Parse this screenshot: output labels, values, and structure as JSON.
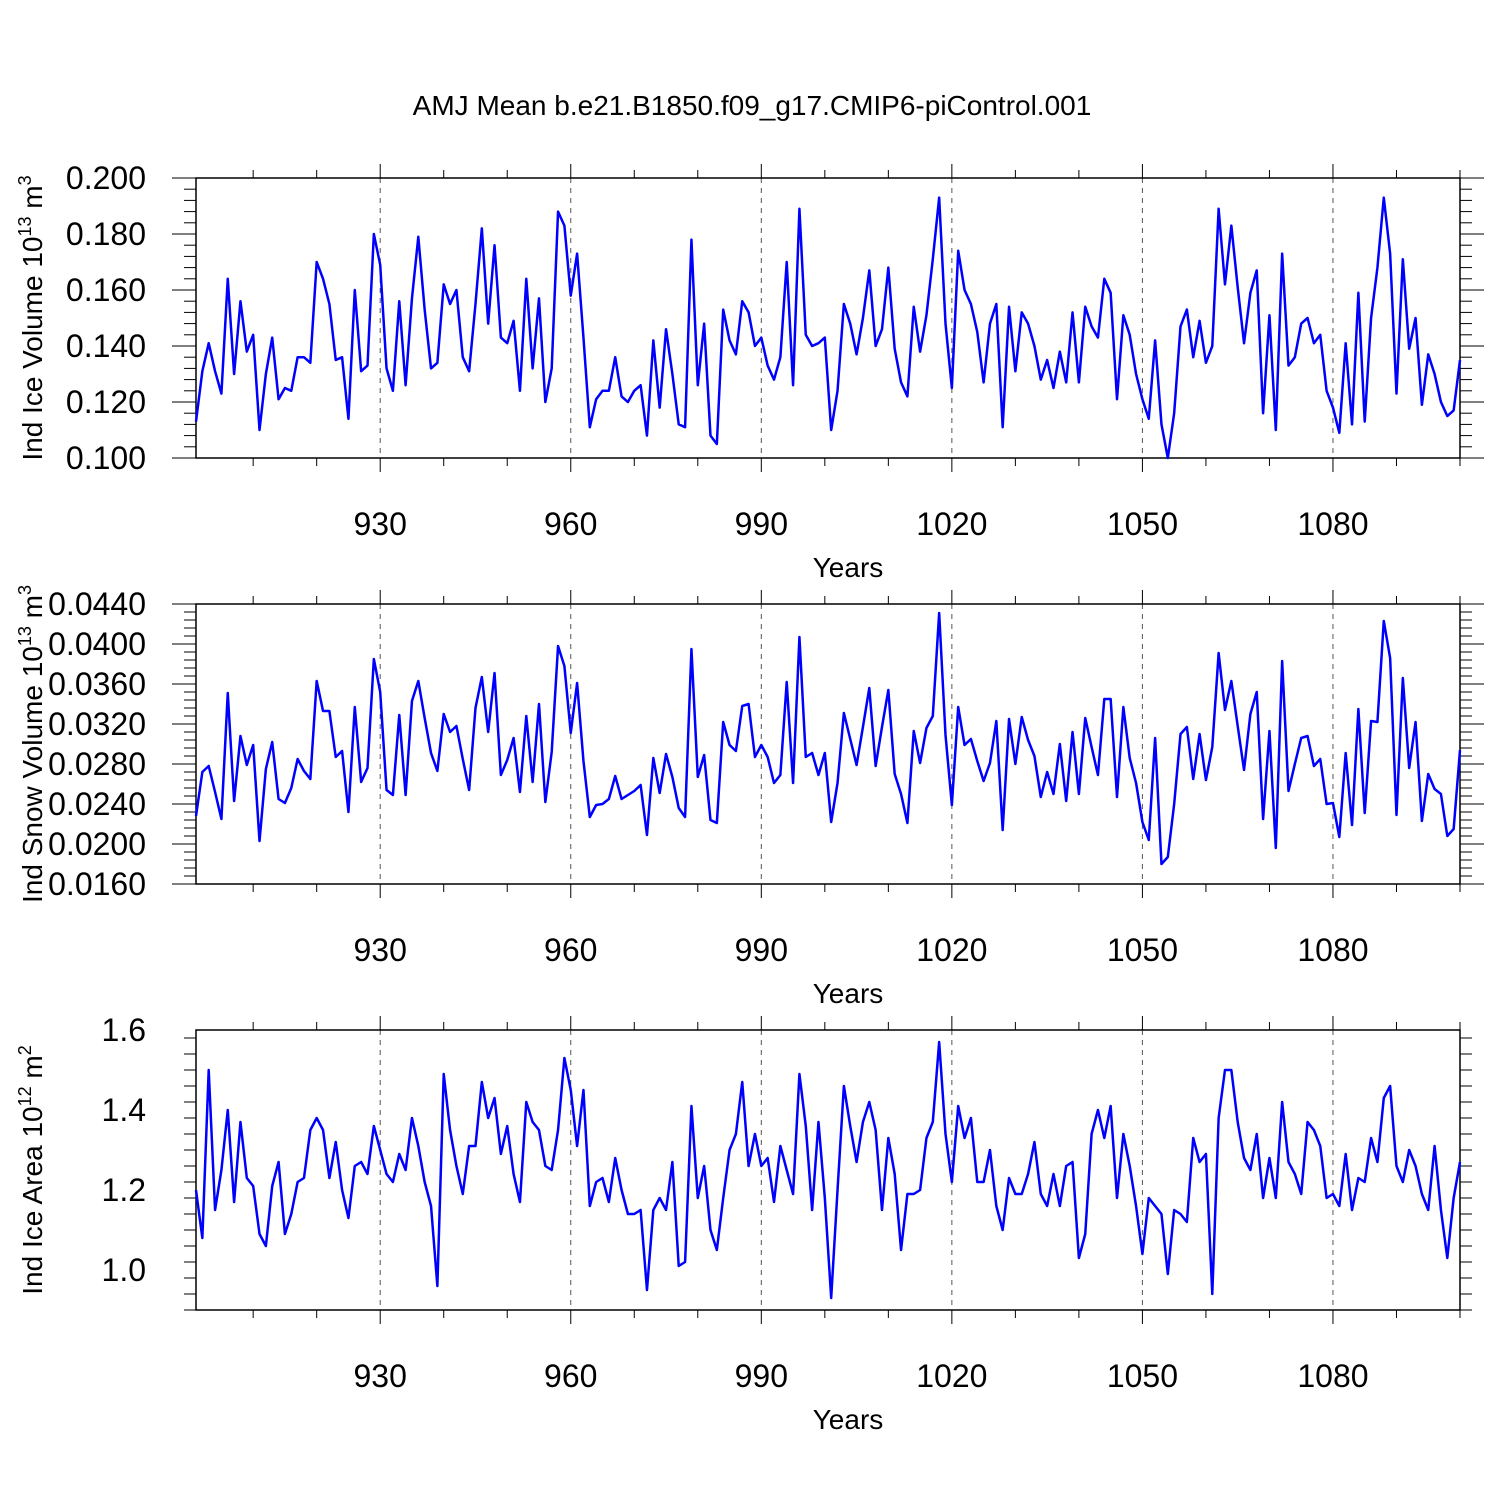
{
  "title": "AMJ Mean b.e21.B1850.f09_g17.CMIP6-piControl.001",
  "colors": {
    "series": "#0000ff",
    "axis": "#000000",
    "grid": "#555555",
    "background": "#ffffff"
  },
  "chart_data": [
    {
      "type": "line",
      "xlabel": "Years",
      "ylabel_main": "Ind Ice Volume 10",
      "ylabel_exp": "13",
      "ylabel_unit": " m",
      "ylabel_unit_exp": "3",
      "xlim": [
        901,
        1100
      ],
      "ylim": [
        0.1,
        0.2
      ],
      "yticks": [
        "0.100",
        "0.120",
        "0.140",
        "0.160",
        "0.180",
        "0.200"
      ],
      "xticks": [
        "930",
        "960",
        "990",
        "1020",
        "1050",
        "1080"
      ],
      "x_start": 901,
      "values": [
        0.113,
        0.131,
        0.141,
        0.131,
        0.123,
        0.164,
        0.13,
        0.156,
        0.138,
        0.144,
        0.11,
        0.13,
        0.143,
        0.121,
        0.125,
        0.124,
        0.136,
        0.136,
        0.134,
        0.17,
        0.164,
        0.155,
        0.135,
        0.136,
        0.114,
        0.16,
        0.131,
        0.133,
        0.18,
        0.169,
        0.132,
        0.124,
        0.156,
        0.126,
        0.157,
        0.179,
        0.153,
        0.132,
        0.134,
        0.162,
        0.155,
        0.16,
        0.136,
        0.131,
        0.155,
        0.182,
        0.148,
        0.176,
        0.143,
        0.141,
        0.149,
        0.124,
        0.164,
        0.132,
        0.157,
        0.12,
        0.132,
        0.188,
        0.183,
        0.158,
        0.173,
        0.143,
        0.111,
        0.121,
        0.124,
        0.124,
        0.136,
        0.122,
        0.12,
        0.124,
        0.126,
        0.108,
        0.142,
        0.118,
        0.146,
        0.13,
        0.112,
        0.111,
        0.178,
        0.126,
        0.148,
        0.108,
        0.105,
        0.153,
        0.142,
        0.137,
        0.156,
        0.152,
        0.14,
        0.143,
        0.133,
        0.128,
        0.136,
        0.17,
        0.126,
        0.189,
        0.144,
        0.14,
        0.141,
        0.143,
        0.11,
        0.124,
        0.155,
        0.148,
        0.137,
        0.15,
        0.167,
        0.14,
        0.146,
        0.168,
        0.139,
        0.127,
        0.122,
        0.154,
        0.138,
        0.151,
        0.171,
        0.193,
        0.148,
        0.125,
        0.174,
        0.16,
        0.155,
        0.145,
        0.127,
        0.148,
        0.155,
        0.111,
        0.154,
        0.131,
        0.152,
        0.148,
        0.14,
        0.128,
        0.135,
        0.125,
        0.138,
        0.127,
        0.152,
        0.127,
        0.154,
        0.147,
        0.143,
        0.164,
        0.159,
        0.121,
        0.151,
        0.144,
        0.13,
        0.121,
        0.114,
        0.142,
        0.112,
        0.1,
        0.116,
        0.147,
        0.153,
        0.136,
        0.149,
        0.134,
        0.14,
        0.189,
        0.162,
        0.183,
        0.161,
        0.141,
        0.159,
        0.167,
        0.116,
        0.151,
        0.11,
        0.173,
        0.133,
        0.136,
        0.148,
        0.15,
        0.141,
        0.144,
        0.124,
        0.118,
        0.109,
        0.141,
        0.112,
        0.159,
        0.113,
        0.15,
        0.168,
        0.193,
        0.173,
        0.123,
        0.171,
        0.139,
        0.15,
        0.119,
        0.137,
        0.13,
        0.12,
        0.115,
        0.117,
        0.135
      ]
    },
    {
      "type": "line",
      "xlabel": "Years",
      "ylabel_main": "Ind Snow Volume 10",
      "ylabel_exp": "13",
      "ylabel_unit": " m",
      "ylabel_unit_exp": "3",
      "xlim": [
        901,
        1100
      ],
      "ylim": [
        0.016,
        0.044
      ],
      "yticks": [
        "0.0160",
        "0.0200",
        "0.0240",
        "0.0280",
        "0.0320",
        "0.0360",
        "0.0400",
        "0.0440"
      ],
      "xticks": [
        "930",
        "960",
        "990",
        "1020",
        "1050",
        "1080"
      ],
      "x_start": 901,
      "values": [
        0.0228,
        0.0272,
        0.0278,
        0.0252,
        0.0225,
        0.0351,
        0.0243,
        0.0308,
        0.0279,
        0.0299,
        0.0203,
        0.0275,
        0.0302,
        0.0245,
        0.0241,
        0.0256,
        0.0285,
        0.0273,
        0.0265,
        0.0363,
        0.0333,
        0.0333,
        0.0287,
        0.0293,
        0.0232,
        0.0337,
        0.0262,
        0.0276,
        0.0385,
        0.0352,
        0.0254,
        0.0249,
        0.0329,
        0.0249,
        0.0343,
        0.0363,
        0.0326,
        0.0291,
        0.0273,
        0.033,
        0.0312,
        0.0318,
        0.0285,
        0.0254,
        0.0336,
        0.0367,
        0.0312,
        0.0371,
        0.0269,
        0.0284,
        0.0306,
        0.0252,
        0.0328,
        0.0262,
        0.034,
        0.0242,
        0.0292,
        0.0398,
        0.0378,
        0.0311,
        0.0361,
        0.0283,
        0.0227,
        0.0239,
        0.024,
        0.0245,
        0.0268,
        0.0245,
        0.0249,
        0.0253,
        0.0259,
        0.0209,
        0.0286,
        0.0251,
        0.029,
        0.0267,
        0.0236,
        0.0227,
        0.0395,
        0.0267,
        0.0289,
        0.0224,
        0.0221,
        0.0322,
        0.0299,
        0.0293,
        0.0338,
        0.034,
        0.0287,
        0.0299,
        0.0287,
        0.0261,
        0.0269,
        0.0362,
        0.0261,
        0.0407,
        0.0287,
        0.0291,
        0.0269,
        0.0291,
        0.0222,
        0.0261,
        0.0331,
        0.0305,
        0.0279,
        0.0317,
        0.0356,
        0.0278,
        0.0317,
        0.0354,
        0.027,
        0.025,
        0.0221,
        0.0313,
        0.0281,
        0.0316,
        0.0328,
        0.0431,
        0.0309,
        0.0239,
        0.0337,
        0.0299,
        0.0305,
        0.0283,
        0.0263,
        0.0281,
        0.0323,
        0.0214,
        0.0325,
        0.028,
        0.0327,
        0.0304,
        0.0288,
        0.0247,
        0.0272,
        0.025,
        0.03,
        0.0243,
        0.0312,
        0.025,
        0.0326,
        0.0297,
        0.0269,
        0.0345,
        0.0345,
        0.0247,
        0.0337,
        0.0286,
        0.0261,
        0.0222,
        0.0204,
        0.0306,
        0.018,
        0.0187,
        0.024,
        0.031,
        0.0317,
        0.0265,
        0.031,
        0.0264,
        0.0297,
        0.0391,
        0.0334,
        0.0363,
        0.0318,
        0.0274,
        0.033,
        0.0352,
        0.0225,
        0.0313,
        0.0196,
        0.0383,
        0.0253,
        0.028,
        0.0306,
        0.0308,
        0.0278,
        0.0285,
        0.024,
        0.0241,
        0.0207,
        0.0291,
        0.0219,
        0.0335,
        0.0231,
        0.0323,
        0.0322,
        0.0423,
        0.0386,
        0.0229,
        0.0366,
        0.0276,
        0.0322,
        0.0223,
        0.027,
        0.0255,
        0.025,
        0.0208,
        0.0215,
        0.0294
      ]
    },
    {
      "type": "line",
      "xlabel": "Years",
      "ylabel_main": "Ind Ice Area 10",
      "ylabel_exp": "12",
      "ylabel_unit": " m",
      "ylabel_unit_exp": "2",
      "xlim": [
        901,
        1100
      ],
      "ylim": [
        0.9,
        1.6
      ],
      "yticks": [
        "1.0",
        "1.2",
        "1.4",
        "1.6"
      ],
      "ytick_values": [
        1.0,
        1.2,
        1.4,
        1.6
      ],
      "xticks": [
        "930",
        "960",
        "990",
        "1020",
        "1050",
        "1080"
      ],
      "x_start": 901,
      "values": [
        1.2,
        1.08,
        1.5,
        1.15,
        1.25,
        1.4,
        1.17,
        1.37,
        1.23,
        1.21,
        1.09,
        1.06,
        1.21,
        1.27,
        1.09,
        1.14,
        1.22,
        1.23,
        1.35,
        1.38,
        1.35,
        1.23,
        1.32,
        1.2,
        1.13,
        1.26,
        1.27,
        1.24,
        1.36,
        1.3,
        1.24,
        1.22,
        1.29,
        1.25,
        1.38,
        1.31,
        1.22,
        1.16,
        0.96,
        1.49,
        1.35,
        1.26,
        1.19,
        1.31,
        1.31,
        1.47,
        1.38,
        1.43,
        1.29,
        1.36,
        1.24,
        1.17,
        1.42,
        1.37,
        1.35,
        1.26,
        1.25,
        1.35,
        1.53,
        1.45,
        1.31,
        1.45,
        1.16,
        1.22,
        1.23,
        1.17,
        1.28,
        1.2,
        1.14,
        1.14,
        1.15,
        0.95,
        1.15,
        1.18,
        1.15,
        1.27,
        1.01,
        1.02,
        1.41,
        1.18,
        1.26,
        1.1,
        1.05,
        1.18,
        1.3,
        1.34,
        1.47,
        1.26,
        1.34,
        1.26,
        1.28,
        1.17,
        1.31,
        1.25,
        1.19,
        1.49,
        1.36,
        1.15,
        1.37,
        1.18,
        0.93,
        1.2,
        1.46,
        1.36,
        1.27,
        1.37,
        1.42,
        1.35,
        1.15,
        1.33,
        1.24,
        1.05,
        1.19,
        1.19,
        1.2,
        1.33,
        1.37,
        1.57,
        1.34,
        1.22,
        1.41,
        1.33,
        1.38,
        1.22,
        1.22,
        1.3,
        1.16,
        1.1,
        1.23,
        1.19,
        1.19,
        1.24,
        1.32,
        1.19,
        1.16,
        1.24,
        1.16,
        1.26,
        1.27,
        1.03,
        1.09,
        1.34,
        1.4,
        1.33,
        1.41,
        1.18,
        1.34,
        1.26,
        1.16,
        1.04,
        1.18,
        1.16,
        1.14,
        0.99,
        1.15,
        1.14,
        1.12,
        1.33,
        1.27,
        1.29,
        0.94,
        1.38,
        1.5,
        1.5,
        1.37,
        1.28,
        1.25,
        1.34,
        1.18,
        1.28,
        1.18,
        1.42,
        1.27,
        1.24,
        1.19,
        1.37,
        1.35,
        1.31,
        1.18,
        1.19,
        1.16,
        1.29,
        1.15,
        1.23,
        1.22,
        1.33,
        1.27,
        1.43,
        1.46,
        1.26,
        1.22,
        1.3,
        1.26,
        1.19,
        1.15,
        1.31,
        1.15,
        1.03,
        1.18,
        1.27
      ]
    }
  ]
}
